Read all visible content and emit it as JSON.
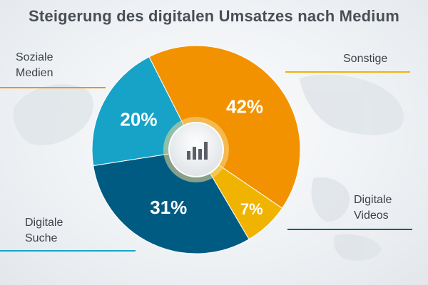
{
  "chart_data": {
    "type": "pie",
    "title": "Steigerung des digitalen Umsatzes nach Medium",
    "unit": "%",
    "slices": [
      {
        "label": "Soziale Medien",
        "value": 42,
        "value_label": "42%",
        "color": "#f39200"
      },
      {
        "label": "Sonstige",
        "value": 7,
        "value_label": "7%",
        "color": "#f0b400"
      },
      {
        "label": "Digitale Videos",
        "value": 31,
        "value_label": "31%",
        "color": "#005b82"
      },
      {
        "label": "Digitale Suche",
        "value": 20,
        "value_label": "20%",
        "color": "#17a3c8"
      }
    ],
    "center_icon": "bar-chart-icon",
    "legend": "callout-labels"
  },
  "labels": {
    "soziale": "Soziale\nMedien",
    "sonstige": "Sonstige",
    "videos": "Digitale\nVideos",
    "suche": "Digitale\nSuche"
  }
}
